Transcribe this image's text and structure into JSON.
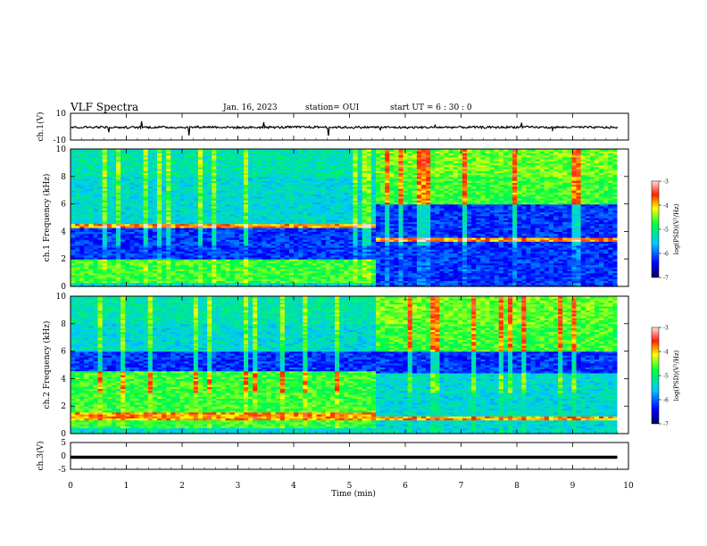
{
  "header": {
    "title": "VLF Spectra",
    "date": "Jan. 16, 2023",
    "station": "station= OUI",
    "start": "start  UT =  6 : 30 : 0"
  },
  "chart_data": [
    {
      "type": "line",
      "panel": "ch1-waveform",
      "ylabel": "ch.1(V)",
      "ylim": [
        -10,
        10
      ],
      "yticks": [
        "10",
        "-10"
      ],
      "x": [
        0,
        0.5,
        1,
        1.5,
        2,
        2.5,
        3,
        3.5,
        4,
        4.5,
        5,
        5.5,
        6,
        6.5,
        7,
        7.5,
        8,
        8.5,
        9,
        9.5,
        9.8
      ],
      "y": [
        -0.5,
        -0.3,
        -0.6,
        -0.4,
        -0.5,
        -0.2,
        -0.6,
        -0.5,
        -0.4,
        -0.3,
        -0.5,
        -0.4,
        -0.6,
        -0.5,
        -0.4,
        -0.5,
        -0.3,
        -0.5,
        -0.4,
        -0.6,
        -0.5
      ]
    },
    {
      "type": "heatmap",
      "panel": "ch1-spectrogram",
      "ylabel": "ch.1 Frequency (kHz)",
      "ylim": [
        0,
        10
      ],
      "yticks": [
        "0",
        "2",
        "4",
        "6",
        "8",
        "10"
      ],
      "xlim": [
        0,
        10
      ],
      "colorbar": {
        "label": "log(PSD)(V²/Hz)",
        "range": [
          -7,
          -3
        ],
        "ticks": [
          "-3",
          "-4",
          "-5",
          "-6",
          "-7"
        ]
      },
      "segments": [
        {
          "t_range": [
            0,
            5.4
          ],
          "quiet_band_kHz": [
            2.0,
            4.6
          ],
          "active_band_kHz": [
            0.3,
            2.0
          ],
          "intense_kHz": [
            4.3,
            4.6
          ]
        },
        {
          "t_range": [
            5.4,
            9.8
          ],
          "quiet_band_kHz": [
            0,
            6.0
          ],
          "active_band_kHz": [
            6.0,
            10.0
          ],
          "intense_kHz": [
            3.3,
            3.5
          ]
        }
      ]
    },
    {
      "type": "heatmap",
      "panel": "ch2-spectrogram",
      "ylabel": "ch.2 Frequency (kHz)",
      "ylim": [
        0,
        10
      ],
      "yticks": [
        "0",
        "2",
        "4",
        "6",
        "8",
        "10"
      ],
      "xlim": [
        0,
        10
      ],
      "colorbar": {
        "label": "log(PSD)(V²/Hz)",
        "range": [
          -7,
          -3
        ],
        "ticks": [
          "-3",
          "-4",
          "-5",
          "-6",
          "-7"
        ]
      },
      "segments": [
        {
          "t_range": [
            0,
            5.4
          ],
          "quiet_band_kHz": [
            4.6,
            6.0
          ],
          "active_band_kHz": [
            0.5,
            4.5
          ],
          "intense_kHz": [
            1.0,
            1.5
          ]
        },
        {
          "t_range": [
            5.4,
            9.8
          ],
          "quiet_band_kHz": [
            4.5,
            6.0
          ],
          "active_band_kHz": [
            6.0,
            10.0
          ],
          "intense_kHz": [
            1.0,
            1.3
          ]
        }
      ]
    },
    {
      "type": "line",
      "panel": "ch3-waveform",
      "ylabel": "ch.3(V)",
      "ylim": [
        -5,
        5
      ],
      "yticks": [
        "5",
        "0",
        "-5"
      ],
      "x": [
        0,
        9.8
      ],
      "y": [
        -0.5,
        -0.5
      ]
    }
  ],
  "xaxis": {
    "label": "Time  (min)",
    "range": [
      0,
      10
    ],
    "ticks": [
      "0",
      "1",
      "2",
      "3",
      "4",
      "5",
      "6",
      "7",
      "8",
      "9",
      "10"
    ]
  },
  "colors": {
    "bg": "#ffffff",
    "axis": "#000000"
  }
}
